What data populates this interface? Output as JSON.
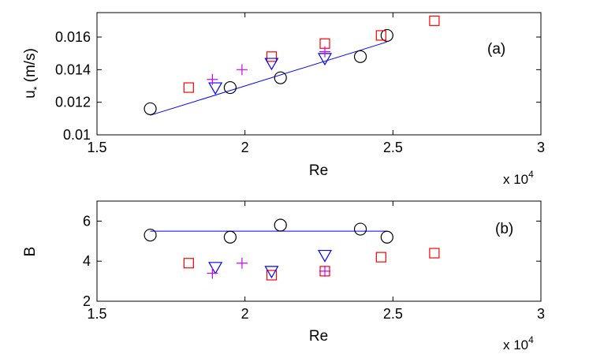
{
  "chart_data": [
    {
      "type": "scatter",
      "panel_tag": "(a)",
      "xlabel": "Re",
      "ylabel": "u* (m/s)",
      "ylabel_base": "u",
      "ylabel_sub": "*",
      "ylabel_rest": " (m/s)",
      "xlim": [
        15000,
        30000
      ],
      "ylim": [
        0.01,
        0.0175
      ],
      "x_ticks": [
        15000,
        20000,
        25000,
        30000
      ],
      "x_tick_labels": [
        "1.5",
        "2",
        "2.5",
        "3"
      ],
      "y_ticks": [
        0.01,
        0.012,
        0.014,
        0.016
      ],
      "y_tick_labels": [
        "0.01",
        "0.012",
        "0.014",
        "0.016"
      ],
      "x_multiplier_text": "x 10",
      "x_multiplier_exp": "4",
      "grid": false,
      "series": [
        {
          "marker": "circle",
          "color": "#000000",
          "x": [
            16800,
            19500,
            21200,
            23900,
            24800
          ],
          "y": [
            0.0116,
            0.0129,
            0.0135,
            0.0148,
            0.0161
          ]
        },
        {
          "marker": "square",
          "color": "#ff0000",
          "x": [
            18100,
            20900,
            22700,
            24600,
            26400
          ],
          "y": [
            0.0129,
            0.0148,
            0.0156,
            0.0161,
            0.017
          ]
        },
        {
          "marker": "triangle-down",
          "color": "#0000ff",
          "x": [
            19000,
            20900,
            22700
          ],
          "y": [
            0.0129,
            0.0144,
            0.0147
          ]
        },
        {
          "marker": "plus",
          "color": "#cc00ff",
          "x": [
            18900,
            19900,
            22700
          ],
          "y": [
            0.0134,
            0.014,
            0.0151
          ]
        }
      ],
      "fit_line": {
        "color": "#0000ff",
        "x": [
          16800,
          24800
        ],
        "y": [
          0.0112,
          0.0157
        ]
      }
    },
    {
      "type": "scatter",
      "panel_tag": "(b)",
      "xlabel": "Re",
      "ylabel": "B",
      "xlim": [
        15000,
        30000
      ],
      "ylim": [
        2,
        7
      ],
      "x_ticks": [
        15000,
        20000,
        25000,
        30000
      ],
      "x_tick_labels": [
        "1.5",
        "2",
        "2.5",
        "3"
      ],
      "y_ticks": [
        2,
        4,
        6
      ],
      "y_tick_labels": [
        "2",
        "4",
        "6"
      ],
      "x_multiplier_text": "x 10",
      "x_multiplier_exp": "4",
      "grid": false,
      "series": [
        {
          "marker": "circle",
          "color": "#000000",
          "x": [
            16800,
            19500,
            21200,
            23900,
            24800
          ],
          "y": [
            5.3,
            5.2,
            5.8,
            5.6,
            5.2
          ]
        },
        {
          "marker": "square",
          "color": "#ff0000",
          "x": [
            18100,
            20900,
            22700,
            24600,
            26400
          ],
          "y": [
            3.9,
            3.3,
            3.5,
            4.2,
            4.4
          ]
        },
        {
          "marker": "triangle-down",
          "color": "#0000ff",
          "x": [
            19000,
            20900,
            22700
          ],
          "y": [
            3.7,
            3.5,
            4.3
          ]
        },
        {
          "marker": "plus",
          "color": "#cc00ff",
          "x": [
            18900,
            19900,
            22700
          ],
          "y": [
            3.4,
            3.9,
            3.5
          ]
        }
      ],
      "fit_line": {
        "color": "#0000ff",
        "x": [
          16800,
          24800
        ],
        "y": [
          5.5,
          5.5
        ]
      }
    }
  ]
}
